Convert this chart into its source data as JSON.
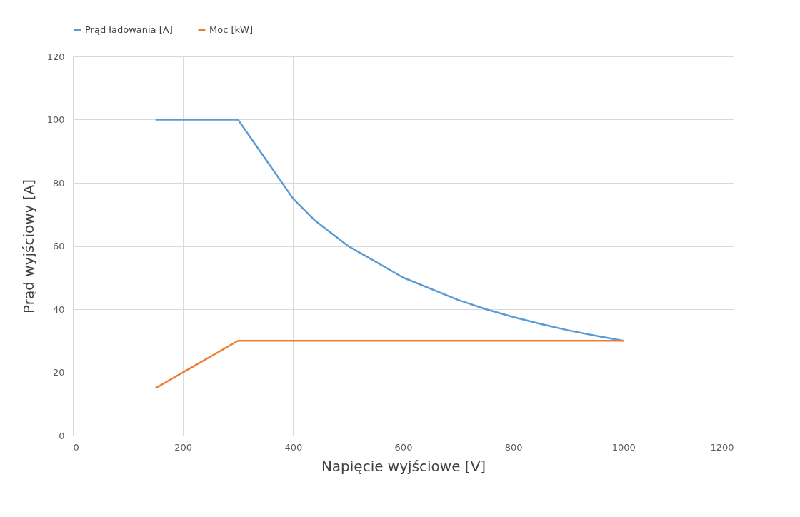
{
  "chart_data": {
    "type": "line",
    "xlabel": "Napięcie wyjściowe [V]",
    "ylabel": "Prąd wyjściowy [A]",
    "x": [
      150,
      300,
      400,
      440,
      500,
      600,
      700,
      750,
      800,
      850,
      900,
      950,
      1000
    ],
    "series": [
      {
        "name": "Prąd ładowania [A]",
        "color": "#5b9bd5",
        "values": [
          100,
          100,
          75,
          68,
          60,
          50,
          42.9,
          40,
          37.5,
          35.3,
          33.3,
          31.6,
          30
        ]
      },
      {
        "name": "Moc [kW]",
        "color": "#ed7d31",
        "values": [
          15,
          30,
          30,
          30,
          30,
          30,
          30,
          30,
          30,
          30,
          30,
          30,
          30
        ]
      }
    ],
    "xlim": [
      0,
      1200
    ],
    "xticks": [
      0,
      200,
      400,
      600,
      800,
      1000,
      1200
    ],
    "ylim": [
      0,
      120
    ],
    "yticks": [
      0,
      20,
      40,
      60,
      80,
      100,
      120
    ],
    "grid": true,
    "legend": "top left",
    "marker": "none",
    "line_style": "solid"
  }
}
